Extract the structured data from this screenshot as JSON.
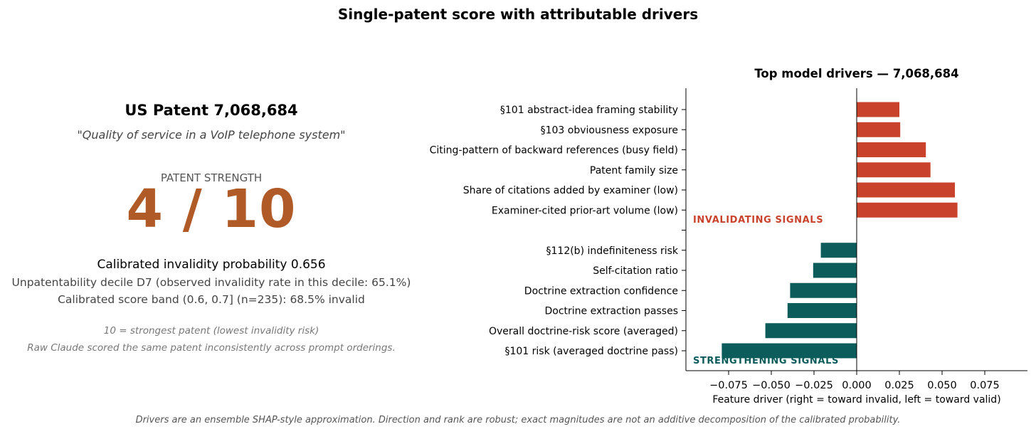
{
  "suptitle": "Single-patent score with attributable drivers",
  "left_panel": {
    "patent_title": "US Patent 7,068,684",
    "patent_subtitle": "\"Quality of service in a VoIP telephone system\"",
    "strength_label": "PATENT STRENGTH",
    "score": "4 / 10",
    "calibrated_line": "Calibrated invalidity probability  0.656",
    "decile_line": "Unpatentability decile  D7  (observed invalidity rate in this decile: 65.1%)",
    "band_line": "Calibrated score band (0.6, 0.7] (n=235):  68.5% invalid",
    "note_scale": "10 = strongest patent (lowest invalidity risk)",
    "note_claude": "Raw Claude scored the same patent inconsistently across prompt orderings."
  },
  "footer": "Drivers are an ensemble SHAP-style approximation. Direction and rank are robust;  exact magnitudes are not an additive decomposition of the calibrated probability.",
  "colors": {
    "invalidating": "#c9432c",
    "strengthening": "#0d5c5c",
    "score": "#b05a28"
  },
  "chart_data": {
    "type": "bar",
    "orientation": "horizontal",
    "title": "Top model drivers — 7,068,684",
    "xlabel": "Feature driver  (right = toward invalid,  left = toward valid)",
    "ylabel": "",
    "xlim": [
      -0.1,
      0.1
    ],
    "xticks": [
      -0.075,
      -0.05,
      -0.025,
      0.0,
      0.025,
      0.05,
      0.075
    ],
    "xtick_labels": [
      "−0.075",
      "−0.050",
      "−0.025",
      "0.000",
      "0.025",
      "0.050",
      "0.075"
    ],
    "categories": [
      "§101 abstract-idea framing stability",
      "§103 obviousness exposure",
      "Citing-pattern of backward references (busy field)",
      "Patent family size",
      "Share of citations added by examiner (low)",
      "Examiner-cited prior-art volume (low)",
      "",
      "§112(b) indefiniteness risk",
      "Self-citation ratio",
      "Doctrine extraction confidence",
      "Doctrine extraction passes",
      "Overall doctrine-risk score (averaged)",
      "§101 risk (averaged doctrine pass)"
    ],
    "values": [
      0.025,
      0.0255,
      0.0405,
      0.0432,
      0.0575,
      0.059,
      null,
      -0.021,
      -0.0255,
      -0.039,
      -0.0405,
      -0.0535,
      -0.079
    ],
    "annotations": [
      "INVALIDATING SIGNALS",
      "STRENGTHENING SIGNALS"
    ],
    "grid": false
  }
}
